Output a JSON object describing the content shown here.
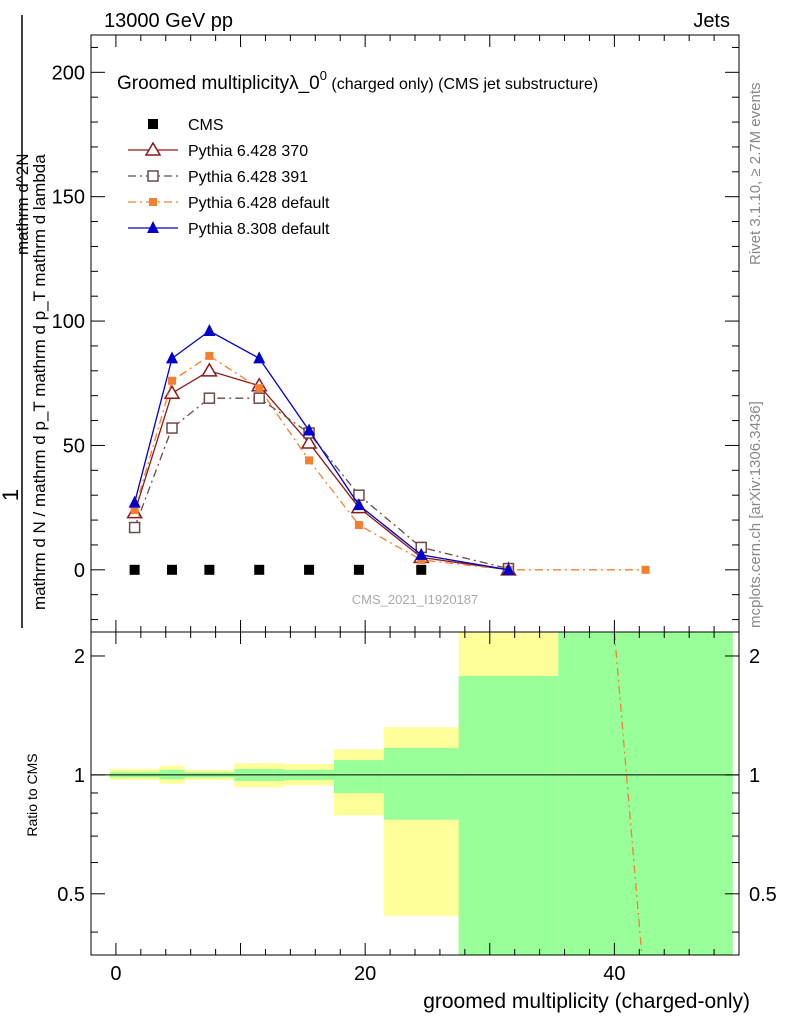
{
  "header": {
    "left": "13000 GeV pp",
    "right": "Jets"
  },
  "side": {
    "events": "Rivet 3.1.10, ≥ 2.7M events",
    "credits": "mcplots.cern.ch [arXiv:1306.3436]"
  },
  "title": {
    "main": "Groomed multiplicityλ_0",
    "sup": "0",
    "tail": " (charged only) (CMS jet substructure)"
  },
  "watermark": "CMS_2021_I1920187",
  "ylabel": {
    "one": "1",
    "den": "mathrm d N / mathrm d p_T mathrm d p_T mathrm d lambda",
    "num": "mathrm d^2N"
  },
  "ratio_ylabel": "Ratio to CMS",
  "xlabel": "groomed multiplicity (charged-only)",
  "colors": {
    "cms": "#000000",
    "p370": "#8b1a1a",
    "p391": "#6b4a4a",
    "p6def": "#f47f30",
    "p8def": "#0000cc",
    "band_green": "#99ff99",
    "band_yellow": "#ffff99"
  },
  "chart_data": [
    {
      "type": "line",
      "xlim": [
        -2,
        50
      ],
      "ylim": [
        -25,
        215
      ],
      "yticks": [
        0,
        50,
        100,
        150,
        200
      ],
      "series": [
        {
          "name": "CMS",
          "marker": "square",
          "x": [
            1.5,
            4.5,
            7.5,
            11.5,
            15.5,
            19.5,
            24.5
          ],
          "y": [
            0,
            0,
            0,
            0,
            0,
            0,
            0
          ]
        },
        {
          "name": "Pythia 6.428 370",
          "marker": "triangle-open",
          "x": [
            1.5,
            4.5,
            7.5,
            11.5,
            15.5,
            19.5,
            24.5,
            31.5
          ],
          "y": [
            23,
            71,
            80,
            74,
            51,
            25,
            5,
            0
          ]
        },
        {
          "name": "Pythia 6.428 391",
          "marker": "square-open",
          "x": [
            1.5,
            4.5,
            7.5,
            11.5,
            15.5,
            19.5,
            24.5,
            31.5
          ],
          "y": [
            17,
            57,
            69,
            69,
            55,
            30,
            9,
            0.5
          ]
        },
        {
          "name": "Pythia 6.428 default",
          "marker": "square-filled",
          "x": [
            1.5,
            4.5,
            7.5,
            11.5,
            15.5,
            19.5,
            24.5,
            31.5,
            42.5
          ],
          "y": [
            24,
            76,
            86,
            73,
            44,
            18,
            4,
            0,
            0
          ]
        },
        {
          "name": "Pythia 8.308 default",
          "marker": "triangle-filled",
          "x": [
            1.5,
            4.5,
            7.5,
            11.5,
            15.5,
            19.5,
            24.5,
            31.5
          ],
          "y": [
            27,
            85,
            96,
            85,
            56,
            26,
            6,
            0
          ]
        }
      ]
    },
    {
      "type": "area",
      "title": "Ratio to CMS",
      "xlim": [
        -2,
        50
      ],
      "ylim": [
        0.35,
        2.3
      ],
      "yticks": [
        0.5,
        1,
        2
      ],
      "xticks": [
        0,
        20,
        40
      ],
      "bands": [
        {
          "x0": -0.5,
          "x1": 3.5,
          "green": [
            0.985,
            1.015
          ],
          "yellow": [
            0.97,
            1.035
          ]
        },
        {
          "x0": 3.5,
          "x1": 5.5,
          "green": [
            0.975,
            1.03
          ],
          "yellow": [
            0.95,
            1.055
          ]
        },
        {
          "x0": 5.5,
          "x1": 9.5,
          "green": [
            0.985,
            1.015
          ],
          "yellow": [
            0.97,
            1.03
          ]
        },
        {
          "x0": 9.5,
          "x1": 13.5,
          "green": [
            0.965,
            1.035
          ],
          "yellow": [
            0.93,
            1.07
          ]
        },
        {
          "x0": 13.5,
          "x1": 17.5,
          "green": [
            0.97,
            1.03
          ],
          "yellow": [
            0.94,
            1.065
          ]
        },
        {
          "x0": 17.5,
          "x1": 21.5,
          "green": [
            0.9,
            1.09
          ],
          "yellow": [
            0.79,
            1.16
          ]
        },
        {
          "x0": 21.5,
          "x1": 27.5,
          "green": [
            0.77,
            1.17
          ],
          "yellow": [
            0.44,
            1.32
          ]
        },
        {
          "x0": 27.5,
          "x1": 35.5,
          "green": [
            0.35,
            1.78
          ],
          "yellow": [
            0.35,
            2.3
          ]
        },
        {
          "x0": 35.5,
          "x1": 49.5,
          "green": [
            0.35,
            2.3
          ],
          "yellow": [
            0.35,
            2.3
          ]
        }
      ],
      "ratio_line": {
        "name": "Pythia 6.428 default",
        "x": [
          40,
          42.2
        ],
        "y": [
          2.3,
          0.35
        ]
      }
    }
  ]
}
